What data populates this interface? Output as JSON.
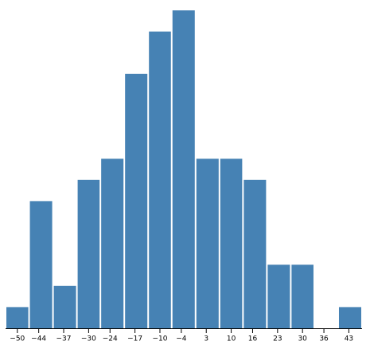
{
  "chart_data": {
    "type": "histogram",
    "bins": [
      -53.3,
      -46.7,
      -40,
      -33.3,
      -26.7,
      -20,
      -13.3,
      -6.7,
      0,
      6.7,
      13.3,
      20,
      26.7,
      33.3,
      40,
      46.7
    ],
    "values": [
      1,
      6,
      2,
      7,
      8,
      12,
      14,
      15,
      8,
      8,
      7,
      3,
      3,
      0,
      1
    ],
    "color": "#4682b4",
    "xlim": [
      -53.3,
      46.7
    ],
    "ylim": [
      0,
      15
    ],
    "xticks": [
      {
        "value": -50,
        "label": "−50"
      },
      {
        "value": -44,
        "label": "−44"
      },
      {
        "value": -37,
        "label": "−37"
      },
      {
        "value": -30,
        "label": "−30"
      },
      {
        "value": -24,
        "label": "−24"
      },
      {
        "value": -17,
        "label": "−17"
      },
      {
        "value": -10,
        "label": "−10"
      },
      {
        "value": -4,
        "label": "−4"
      },
      3,
      10,
      16,
      23,
      30,
      36,
      43
    ]
  }
}
